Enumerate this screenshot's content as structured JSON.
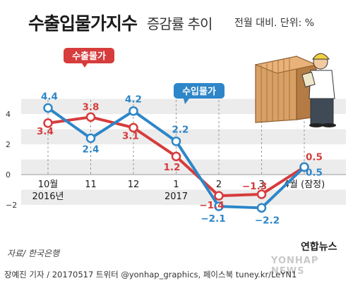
{
  "header": {
    "title": "수출입물가지수",
    "subtitle": "증감률 추이",
    "unit": "전월 대비. 단위: %"
  },
  "source": "자료/ 한국은행",
  "credit": "장예진 기자 / 20170517 트위터 @yonhap_graphics, 페이스북 tuney.kr/LeYN1",
  "brand": "연합뉴스",
  "watermark": "YONHAP NEWS",
  "chart_data": {
    "type": "line",
    "categories": [
      "10월\n2016년",
      "11",
      "12",
      "1\n2017",
      "2",
      "3",
      "4월 (잠정)"
    ],
    "series": [
      {
        "name": "수출물가",
        "color": "#d63c3c",
        "values": [
          3.4,
          3.8,
          3.1,
          1.2,
          -1.4,
          -1.3,
          0.5
        ],
        "labels": [
          "3.4",
          "3.8",
          "3.1",
          "1.2",
          "−1.4",
          "−1.3",
          "0.5"
        ]
      },
      {
        "name": "수입물가",
        "color": "#2e86c8",
        "values": [
          4.4,
          2.4,
          4.2,
          2.2,
          -2.1,
          -2.2,
          0.5
        ],
        "labels": [
          "4.4",
          "2.4",
          "4.2",
          "2.2",
          "−2.1",
          "−2.2",
          "0.5"
        ]
      }
    ],
    "yticks": [
      "4",
      "2",
      "0",
      "−2"
    ],
    "ylim": [
      -3,
      5.5
    ],
    "grid": "banded"
  }
}
